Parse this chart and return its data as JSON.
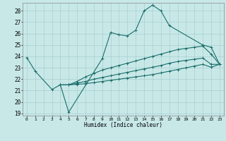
{
  "xlabel": "Humidex (Indice chaleur)",
  "xlim": [
    -0.5,
    23.5
  ],
  "ylim": [
    18.8,
    28.7
  ],
  "yticks": [
    19,
    20,
    21,
    22,
    23,
    24,
    25,
    26,
    27,
    28
  ],
  "xticks": [
    0,
    1,
    2,
    3,
    4,
    5,
    6,
    7,
    8,
    9,
    10,
    11,
    12,
    13,
    14,
    15,
    16,
    17,
    18,
    19,
    20,
    21,
    22,
    23
  ],
  "bg_color": "#c8e8e8",
  "line_color": "#1a6e6a",
  "grid_color": "#a0c8c8",
  "series": [
    {
      "x": [
        0,
        1,
        3,
        4,
        5,
        9,
        10,
        11,
        12,
        13,
        14,
        15,
        16,
        17,
        21,
        22,
        23
      ],
      "y": [
        23.9,
        22.7,
        21.1,
        21.5,
        19.1,
        23.8,
        26.1,
        25.9,
        25.8,
        26.3,
        28.0,
        28.5,
        28.0,
        26.7,
        25.0,
        24.8,
        23.3
      ]
    },
    {
      "x": [
        4,
        5,
        6,
        7,
        8,
        9,
        10,
        11,
        12,
        13,
        14,
        15,
        16,
        17,
        18,
        19,
        20,
        21,
        22,
        23
      ],
      "y": [
        21.5,
        21.5,
        21.8,
        22.2,
        22.5,
        22.8,
        23.0,
        23.2,
        23.4,
        23.6,
        23.8,
        24.0,
        24.2,
        24.4,
        24.6,
        24.7,
        24.8,
        24.9,
        24.2,
        23.3
      ]
    },
    {
      "x": [
        4,
        5,
        6,
        7,
        8,
        9,
        10,
        11,
        12,
        13,
        14,
        15,
        16,
        17,
        18,
        19,
        20,
        21,
        22,
        23
      ],
      "y": [
        21.5,
        21.5,
        21.65,
        21.8,
        22.0,
        22.15,
        22.3,
        22.45,
        22.6,
        22.75,
        22.9,
        23.05,
        23.2,
        23.4,
        23.55,
        23.65,
        23.75,
        23.85,
        23.3,
        23.3
      ]
    },
    {
      "x": [
        4,
        5,
        6,
        7,
        8,
        9,
        10,
        11,
        12,
        13,
        14,
        15,
        16,
        17,
        18,
        19,
        20,
        21,
        22,
        23
      ],
      "y": [
        21.5,
        21.5,
        21.55,
        21.6,
        21.7,
        21.8,
        21.9,
        22.0,
        22.1,
        22.2,
        22.3,
        22.4,
        22.55,
        22.7,
        22.85,
        23.0,
        23.15,
        23.3,
        23.05,
        23.3
      ]
    }
  ]
}
